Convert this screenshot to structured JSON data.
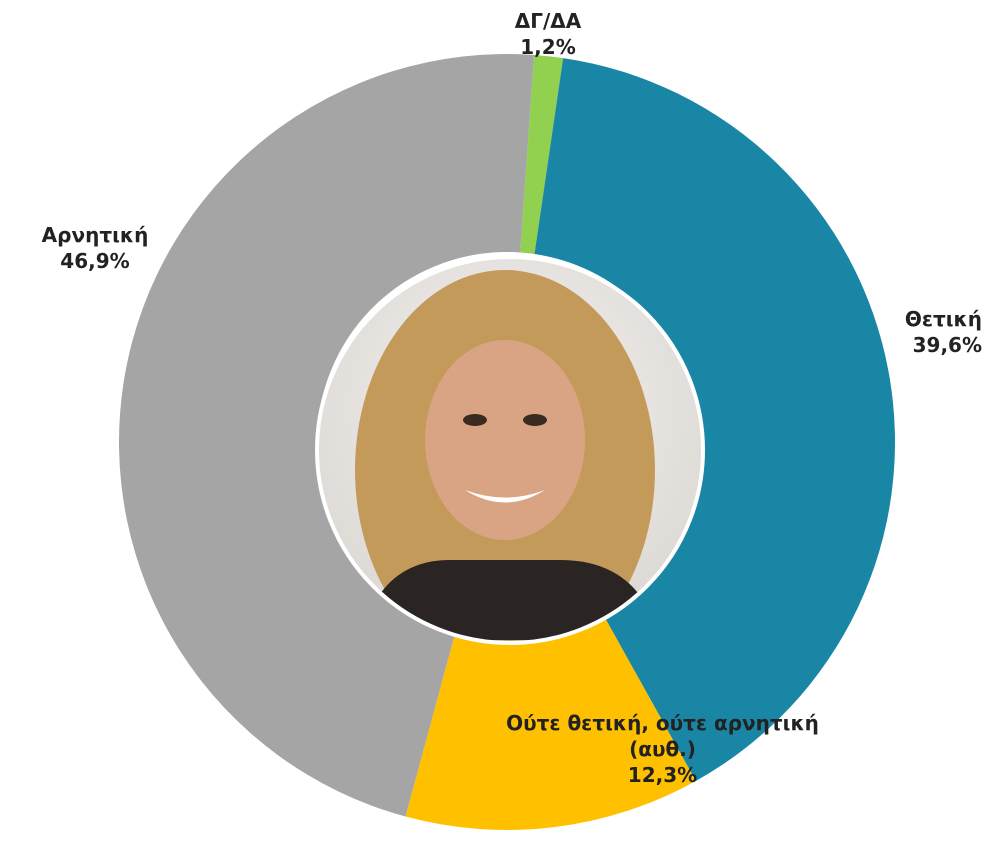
{
  "chart_data": {
    "type": "donut",
    "categories": [
      "ΔΓ/ΔΑ",
      "Θετική",
      "Ούτε θετική, ούτε αρνητική (αυθ.)",
      "Αρνητική"
    ],
    "values": [
      1.2,
      39.6,
      12.3,
      46.9
    ],
    "value_labels": [
      "1,2%",
      "39,6%",
      "12,3%",
      "46,9%"
    ],
    "colors": [
      "#92d050",
      "#1a86a6",
      "#ffc000",
      "#a5a5a5"
    ]
  }
}
